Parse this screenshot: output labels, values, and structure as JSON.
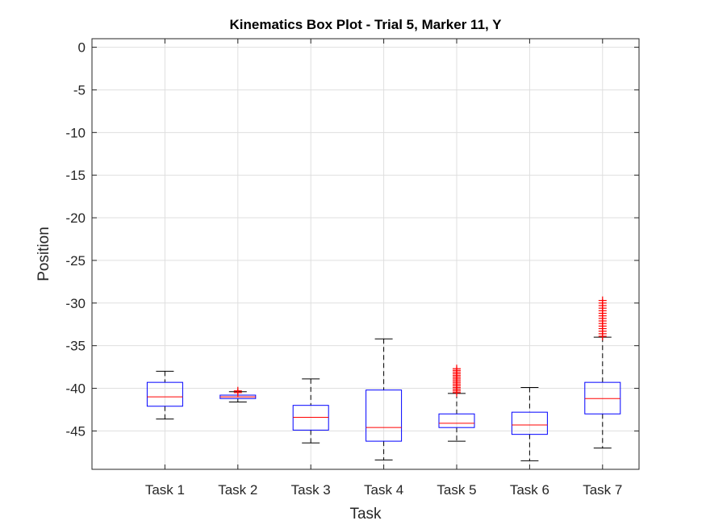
{
  "chart_data": {
    "type": "box",
    "title": "Kinematics Box Plot - Trial 5, Marker 11, Y",
    "xlabel": "Task",
    "ylabel": "Position",
    "ylim": [
      -49.5,
      1
    ],
    "yticks": [
      0,
      -5,
      -10,
      -15,
      -20,
      -25,
      -30,
      -35,
      -40,
      -45
    ],
    "grid": true,
    "colors": {
      "box": "#0000ff",
      "median": "#ff0000",
      "whisker": "#000000",
      "outlier": "#ff0000",
      "grid": "#dfdfdf",
      "axis": "#262626"
    },
    "categories": [
      "Task 1",
      "Task 2",
      "Task 3",
      "Task 4",
      "Task 5",
      "Task 6",
      "Task 7"
    ],
    "boxes": [
      {
        "min": -43.6,
        "q1": -42.1,
        "median": -41.0,
        "q3": -39.3,
        "max": -38.0,
        "outliers": []
      },
      {
        "min": -41.6,
        "q1": -41.2,
        "median": -41.0,
        "q3": -40.8,
        "max": -40.4,
        "outliers": [
          -40.3,
          -40.5
        ]
      },
      {
        "min": -46.4,
        "q1": -44.9,
        "median": -43.4,
        "q3": -42.0,
        "max": -38.9,
        "outliers": []
      },
      {
        "min": -48.4,
        "q1": -46.2,
        "median": -44.6,
        "q3": -40.2,
        "max": -34.2,
        "outliers": []
      },
      {
        "min": -46.2,
        "q1": -44.6,
        "median": -44.1,
        "q3": -43.0,
        "max": -40.6,
        "outliers": [
          -40.5,
          -40.3,
          -40.1,
          -39.9,
          -39.7,
          -39.5,
          -39.3,
          -39.1,
          -38.9,
          -38.7,
          -38.5,
          -38.3,
          -38.1,
          -37.9,
          -37.7
        ]
      },
      {
        "min": -48.5,
        "q1": -45.4,
        "median": -44.3,
        "q3": -42.8,
        "max": -39.9,
        "outliers": []
      },
      {
        "min": -47.0,
        "q1": -43.0,
        "median": -41.2,
        "q3": -39.3,
        "max": -34.0,
        "outliers": [
          -33.9,
          -33.6,
          -33.3,
          -33.0,
          -32.7,
          -32.4,
          -32.1,
          -31.8,
          -31.5,
          -31.2,
          -30.9,
          -30.6,
          -30.3,
          -30.0,
          -29.7
        ]
      }
    ]
  }
}
